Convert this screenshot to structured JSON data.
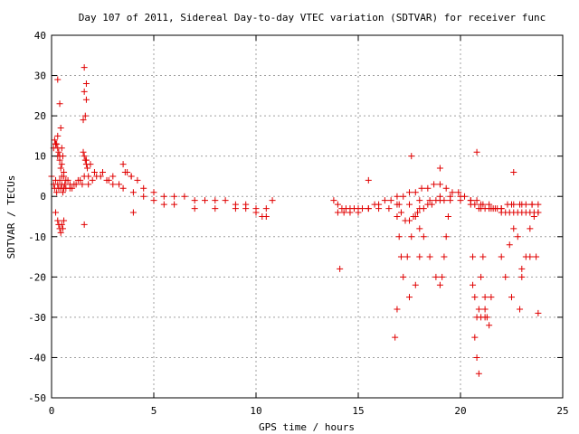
{
  "chart_data": {
    "type": "scatter",
    "title": "Day 107 of 2011, Sidereal Day-to-day VTEC variation (SDTVAR) for receiver func",
    "xlabel": "GPS time / hours",
    "ylabel": "SDTVAR / TECUs",
    "xlim": [
      0,
      25
    ],
    "ylim": [
      -50,
      40
    ],
    "xticks": [
      "0",
      "5",
      "10",
      "15",
      "20",
      "25"
    ],
    "yticks": [
      "40",
      "30",
      "20",
      "10",
      "0",
      "-10",
      "-20",
      "-30",
      "-40",
      "-50"
    ],
    "grid": true,
    "marker": "+",
    "color": "#e00000",
    "series": [
      {
        "x": [
          0.0,
          0.1,
          0.15,
          0.2,
          0.25,
          0.3,
          0.35,
          0.4,
          0.45,
          0.5,
          0.55,
          0.6,
          0.65,
          0.7,
          0.8,
          0.9,
          1.0,
          1.2,
          1.4,
          1.6,
          1.8,
          2.0,
          2.2,
          2.5,
          2.8,
          3.0,
          3.3,
          3.6,
          3.9,
          4.2,
          4.5,
          5.0,
          5.5,
          6.0,
          6.5,
          7.0,
          7.5,
          8.0,
          8.5,
          9.0,
          9.5,
          10.0,
          10.5,
          10.8,
          0.1,
          0.2,
          0.3,
          0.4,
          0.5,
          0.6,
          0.7,
          0.9,
          1.1,
          1.3,
          1.5,
          1.7,
          1.9,
          2.1,
          2.4,
          2.7,
          3.0,
          3.5,
          4.0,
          4.5,
          5.0,
          5.5,
          6.0,
          7.0,
          8.0,
          9.0,
          9.5,
          10.0,
          10.3,
          10.5,
          0.2,
          0.3,
          0.35,
          0.4,
          0.45,
          0.5,
          0.55,
          0.6,
          0.3,
          0.25,
          0.35,
          0.4,
          0.45,
          0.5,
          0.15,
          0.2,
          0.3,
          1.55,
          1.6,
          1.65,
          1.7,
          1.75,
          1.8,
          1.6,
          1.65,
          1.7,
          1.55,
          1.6,
          1.7,
          3.5,
          3.7,
          3.9,
          4.0,
          0.3,
          0.4,
          0.45,
          0.5,
          0.55,
          0.6,
          1.6
        ],
        "y": [
          5,
          3,
          2,
          4,
          1,
          3,
          2,
          4,
          2,
          3,
          1,
          2,
          3,
          2,
          4,
          3,
          2,
          3,
          4,
          5,
          3,
          4,
          5,
          6,
          4,
          5,
          3,
          6,
          5,
          4,
          2,
          1,
          0,
          0,
          0,
          -1,
          -1,
          -1,
          -1,
          -2,
          -2,
          -3,
          -3,
          -1,
          12,
          13,
          12,
          10,
          8,
          6,
          4,
          2,
          3,
          4,
          3,
          9,
          8,
          6,
          5,
          4,
          3,
          2,
          1,
          0,
          -1,
          -2,
          -2,
          -3,
          -3,
          -3,
          -3,
          -4,
          -5,
          -5,
          -4,
          -6,
          -7,
          -8,
          -9,
          -7,
          -8,
          -6,
          15,
          13,
          11,
          9,
          7,
          5,
          14,
          13,
          10,
          11,
          10,
          9,
          8,
          7,
          5,
          -7,
          20,
          24,
          19,
          26,
          28,
          8,
          6,
          5,
          -4,
          29,
          23,
          17,
          12,
          10,
          5,
          32
        ]
      },
      {
        "x": [
          13.8,
          14.0,
          14.2,
          14.4,
          14.6,
          14.8,
          15.0,
          15.2,
          15.5,
          15.8,
          16.0,
          16.3,
          16.6,
          16.9,
          17.2,
          17.5,
          17.8,
          18.1,
          18.4,
          18.7,
          19.0,
          19.3,
          19.6,
          19.9,
          20.2,
          20.5,
          20.8,
          21.1,
          21.4,
          21.7,
          22.0,
          22.3,
          22.6,
          22.9,
          23.2,
          23.5,
          23.8,
          14.0,
          14.3,
          14.6,
          15.0,
          15.5,
          16.0,
          16.5,
          17.0,
          17.5,
          18.0,
          18.5,
          19.0,
          19.5,
          20.0,
          20.5,
          21.0,
          21.5,
          22.0,
          22.5,
          23.0,
          23.5,
          16.9,
          17.0,
          17.1,
          17.2,
          17.4,
          17.6,
          17.8,
          18.0,
          18.2,
          18.5,
          18.8,
          19.0,
          19.1,
          19.2,
          19.3,
          19.4,
          20.6,
          20.7,
          20.8,
          20.9,
          21.0,
          21.1,
          21.2,
          21.3,
          21.4,
          21.5,
          22.0,
          22.2,
          22.4,
          22.6,
          22.8,
          23.0,
          23.2,
          23.4,
          23.6,
          23.8,
          16.9,
          17.1,
          17.3,
          17.5,
          17.7,
          17.9,
          18.0,
          18.2,
          18.4,
          18.6,
          18.8,
          19.0,
          19.2,
          19.5,
          20.0,
          20.5,
          20.7,
          20.9,
          21.0,
          21.2,
          21.4,
          21.6,
          21.8,
          22.0,
          22.2,
          22.4,
          22.6,
          22.8,
          23.0,
          23.2,
          23.4,
          23.6,
          23.8,
          16.9,
          17.5,
          17.8,
          18.0,
          20.7,
          20.8,
          20.9,
          21.0,
          21.2,
          22.5,
          22.9,
          23.0,
          23.7,
          23.8,
          14.1,
          15.5,
          16.8,
          17.6,
          19.0,
          20.6,
          20.8,
          21.2,
          22.6,
          23.4
        ],
        "y": [
          -1,
          -2,
          -3,
          -3,
          -3,
          -3,
          -3,
          -3,
          -3,
          -2,
          -2,
          -1,
          -1,
          0,
          0,
          1,
          1,
          2,
          2,
          3,
          3,
          2,
          1,
          1,
          0,
          -1,
          -1,
          -2,
          -2,
          -3,
          -3,
          -2,
          -2,
          -2,
          -2,
          -2,
          -2,
          -4,
          -4,
          -4,
          -4,
          -3,
          -3,
          -3,
          -2,
          -2,
          -1,
          -1,
          0,
          0,
          0,
          -1,
          -2,
          -3,
          -3,
          -2,
          -2,
          -2,
          -5,
          -10,
          -15,
          -20,
          -15,
          -10,
          -5,
          -8,
          -10,
          -15,
          -20,
          -22,
          -20,
          -15,
          -10,
          -5,
          -15,
          -25,
          -30,
          -28,
          -20,
          -15,
          -25,
          -30,
          -32,
          -25,
          -15,
          -20,
          -12,
          -8,
          -10,
          -18,
          -15,
          -8,
          -5,
          -4,
          -2,
          -4,
          -6,
          -6,
          -5,
          -4,
          -3,
          -3,
          -2,
          -2,
          -1,
          -1,
          -1,
          -1,
          -1,
          -2,
          -2,
          -3,
          -3,
          -3,
          -3,
          -3,
          -3,
          -4,
          -4,
          -4,
          -4,
          -4,
          -4,
          -4,
          -4,
          -4,
          -4,
          -28,
          -25,
          -22,
          -15,
          -35,
          -40,
          -44,
          -30,
          -28,
          -25,
          -28,
          -20,
          -15,
          -29,
          -18,
          4,
          -35,
          10,
          7,
          -22,
          11,
          -30,
          6,
          -15
        ]
      }
    ]
  }
}
